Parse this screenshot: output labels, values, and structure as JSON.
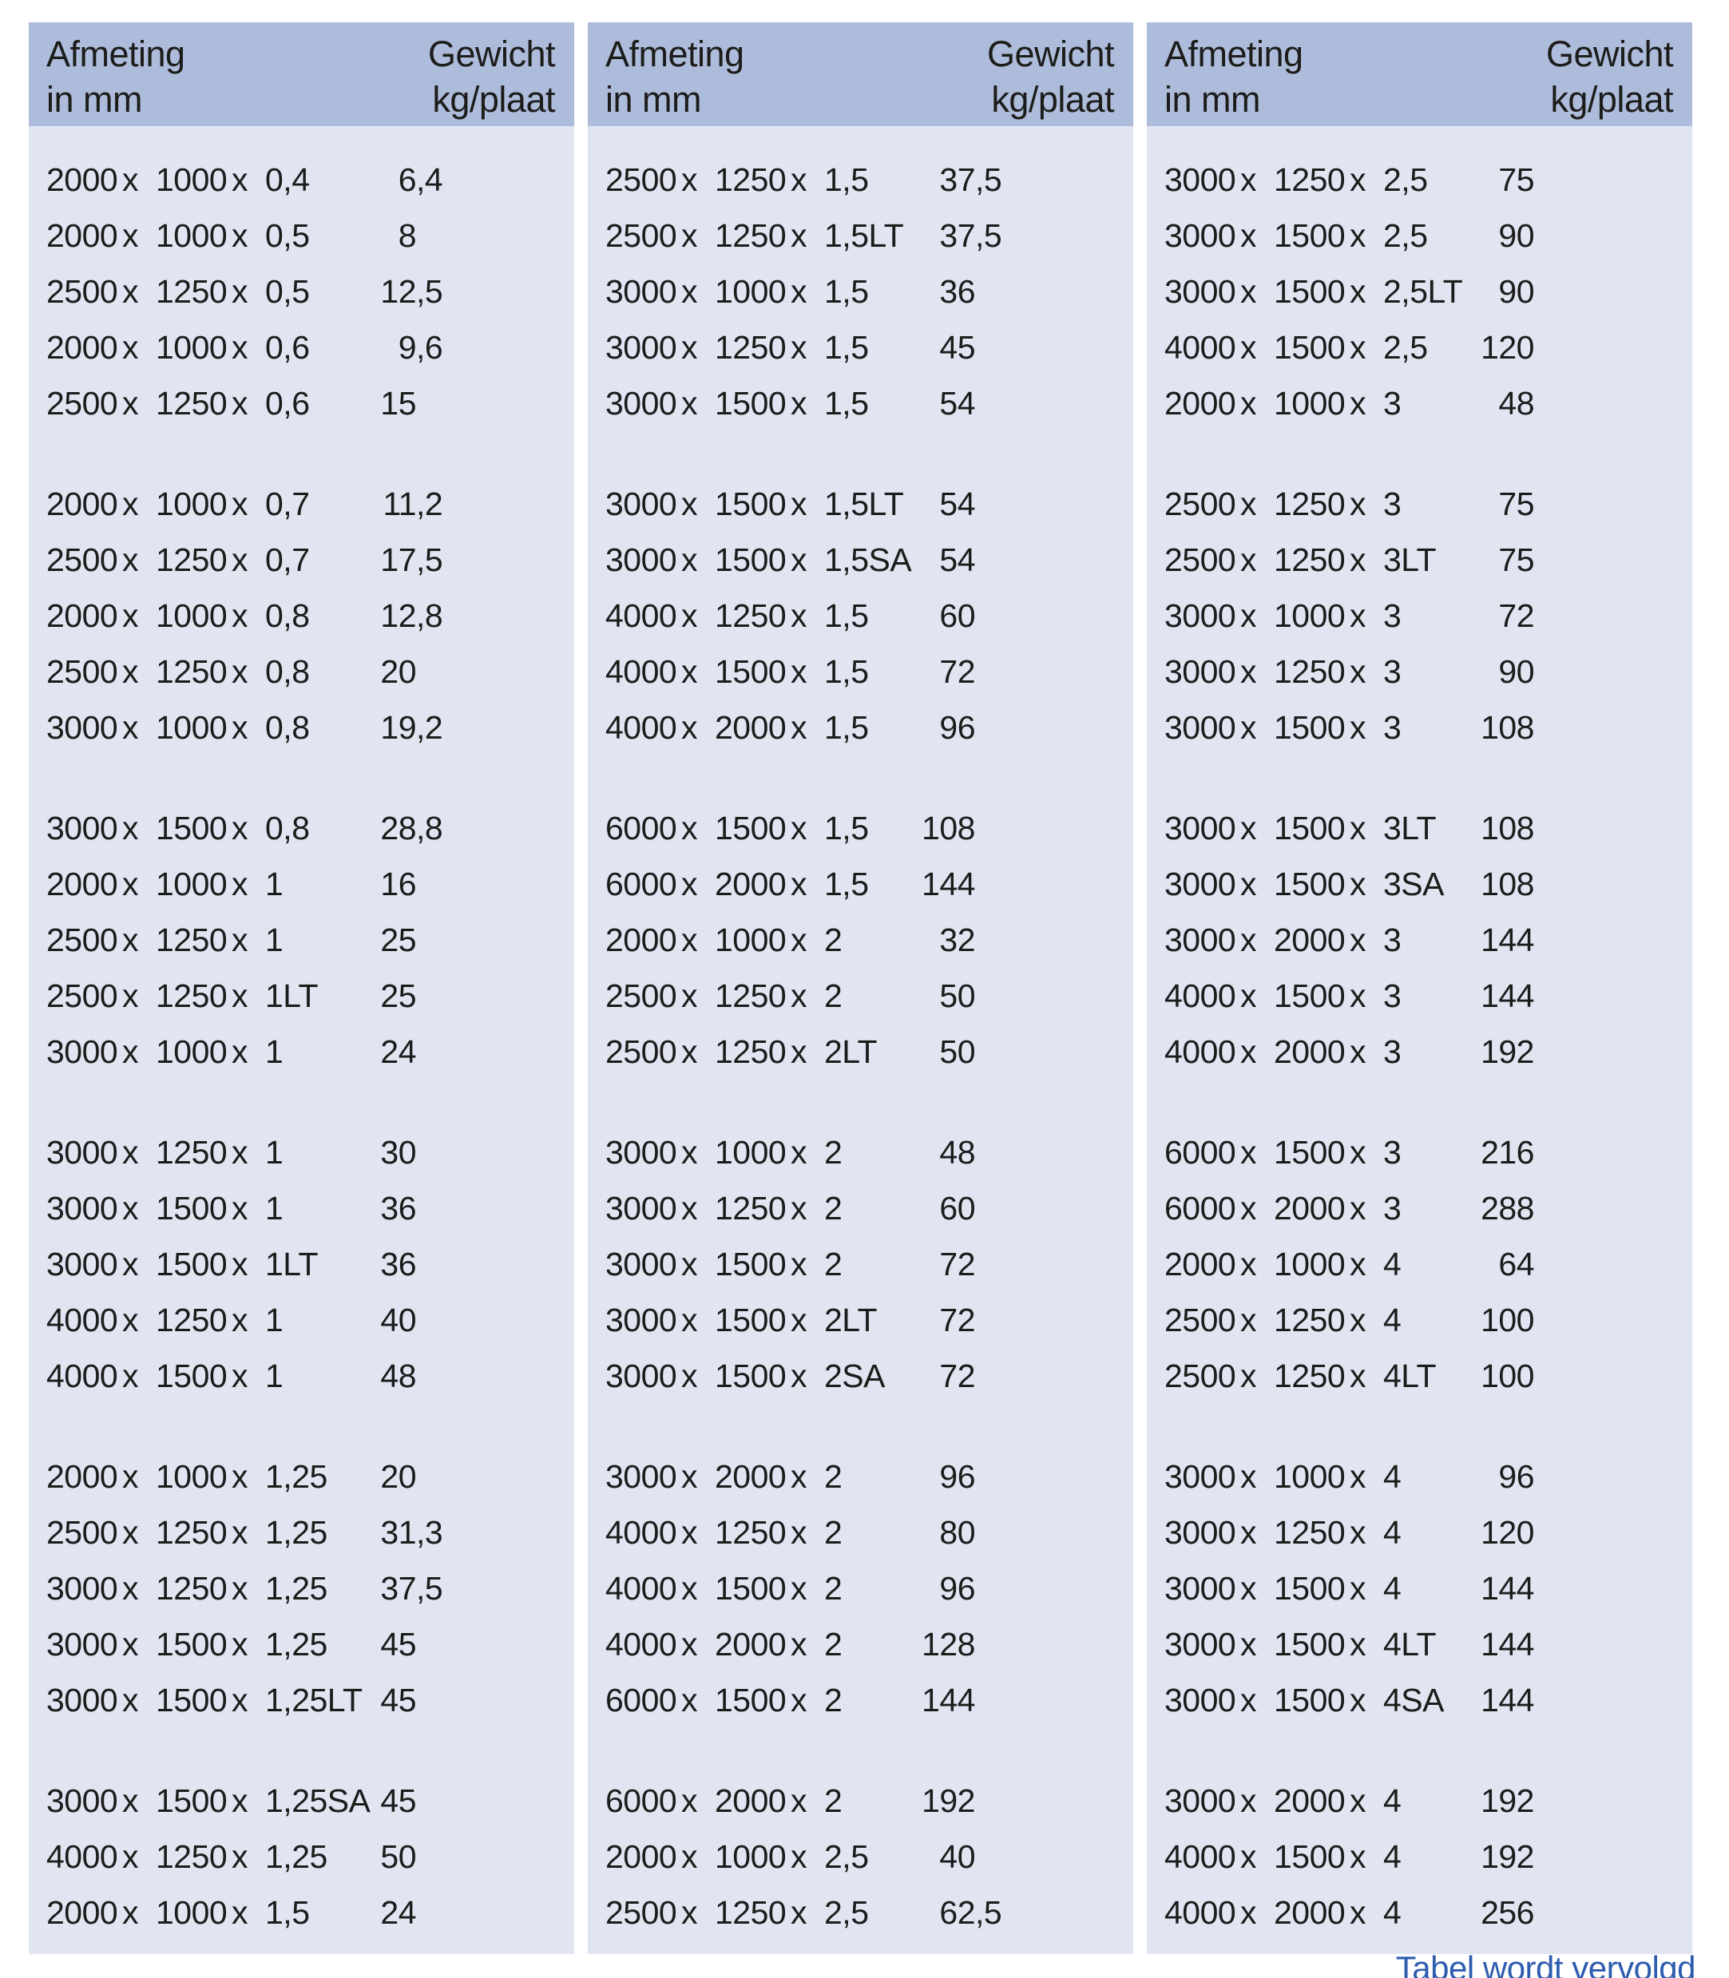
{
  "colors": {
    "page_bg": "#ffffff",
    "header_bg": "#aebcdb",
    "body_bg": "#e1e5f2",
    "text": "#1c1c1a",
    "footer_text": "#2e5cae"
  },
  "table": {
    "header": {
      "left_line1": "Afmeting",
      "left_line2": "in mm",
      "right_line1": "Gewicht",
      "right_line2": "kg/plaat"
    },
    "separator": "x",
    "columns": [
      {
        "groups": [
          [
            [
              "2000",
              "1000",
              "0,4",
              "6,4"
            ],
            [
              "2000",
              "1000",
              "0,5",
              "8"
            ],
            [
              "2500",
              "1250",
              "0,5",
              "12,5"
            ],
            [
              "2000",
              "1000",
              "0,6",
              "9,6"
            ],
            [
              "2500",
              "1250",
              "0,6",
              "15"
            ]
          ],
          [
            [
              "2000",
              "1000",
              "0,7",
              "11,2"
            ],
            [
              "2500",
              "1250",
              "0,7",
              "17,5"
            ],
            [
              "2000",
              "1000",
              "0,8",
              "12,8"
            ],
            [
              "2500",
              "1250",
              "0,8",
              "20"
            ],
            [
              "3000",
              "1000",
              "0,8",
              "19,2"
            ]
          ],
          [
            [
              "3000",
              "1500",
              "0,8",
              "28,8"
            ],
            [
              "2000",
              "1000",
              "1",
              "16"
            ],
            [
              "2500",
              "1250",
              "1",
              "25"
            ],
            [
              "2500",
              "1250",
              "1LT",
              "25"
            ],
            [
              "3000",
              "1000",
              "1",
              "24"
            ]
          ],
          [
            [
              "3000",
              "1250",
              "1",
              "30"
            ],
            [
              "3000",
              "1500",
              "1",
              "36"
            ],
            [
              "3000",
              "1500",
              "1LT",
              "36"
            ],
            [
              "4000",
              "1250",
              "1",
              "40"
            ],
            [
              "4000",
              "1500",
              "1",
              "48"
            ]
          ],
          [
            [
              "2000",
              "1000",
              "1,25",
              "20"
            ],
            [
              "2500",
              "1250",
              "1,25",
              "31,3"
            ],
            [
              "3000",
              "1250",
              "1,25",
              "37,5"
            ],
            [
              "3000",
              "1500",
              "1,25",
              "45"
            ],
            [
              "3000",
              "1500",
              "1,25LT",
              "45"
            ]
          ],
          [
            [
              "3000",
              "1500",
              "1,25SA",
              "45"
            ],
            [
              "4000",
              "1250",
              "1,25",
              "50"
            ],
            [
              "2000",
              "1000",
              "1,5",
              "24"
            ]
          ]
        ]
      },
      {
        "groups": [
          [
            [
              "2500",
              "1250",
              "1,5",
              "37,5"
            ],
            [
              "2500",
              "1250",
              "1,5LT",
              "37,5"
            ],
            [
              "3000",
              "1000",
              "1,5",
              "36"
            ],
            [
              "3000",
              "1250",
              "1,5",
              "45"
            ],
            [
              "3000",
              "1500",
              "1,5",
              "54"
            ]
          ],
          [
            [
              "3000",
              "1500",
              "1,5LT",
              "54"
            ],
            [
              "3000",
              "1500",
              "1,5SA",
              "54"
            ],
            [
              "4000",
              "1250",
              "1,5",
              "60"
            ],
            [
              "4000",
              "1500",
              "1,5",
              "72"
            ],
            [
              "4000",
              "2000",
              "1,5",
              "96"
            ]
          ],
          [
            [
              "6000",
              "1500",
              "1,5",
              "108"
            ],
            [
              "6000",
              "2000",
              "1,5",
              "144"
            ],
            [
              "2000",
              "1000",
              "2",
              "32"
            ],
            [
              "2500",
              "1250",
              "2",
              "50"
            ],
            [
              "2500",
              "1250",
              "2LT",
              "50"
            ]
          ],
          [
            [
              "3000",
              "1000",
              "2",
              "48"
            ],
            [
              "3000",
              "1250",
              "2",
              "60"
            ],
            [
              "3000",
              "1500",
              "2",
              "72"
            ],
            [
              "3000",
              "1500",
              "2LT",
              "72"
            ],
            [
              "3000",
              "1500",
              "2SA",
              "72"
            ]
          ],
          [
            [
              "3000",
              "2000",
              "2",
              "96"
            ],
            [
              "4000",
              "1250",
              "2",
              "80"
            ],
            [
              "4000",
              "1500",
              "2",
              "96"
            ],
            [
              "4000",
              "2000",
              "2",
              "128"
            ],
            [
              "6000",
              "1500",
              "2",
              "144"
            ]
          ],
          [
            [
              "6000",
              "2000",
              "2",
              "192"
            ],
            [
              "2000",
              "1000",
              "2,5",
              "40"
            ],
            [
              "2500",
              "1250",
              "2,5",
              "62,5"
            ]
          ]
        ]
      },
      {
        "groups": [
          [
            [
              "3000",
              "1250",
              "2,5",
              "75"
            ],
            [
              "3000",
              "1500",
              "2,5",
              "90"
            ],
            [
              "3000",
              "1500",
              "2,5LT",
              "90"
            ],
            [
              "4000",
              "1500",
              "2,5",
              "120"
            ],
            [
              "2000",
              "1000",
              "3",
              "48"
            ]
          ],
          [
            [
              "2500",
              "1250",
              "3",
              "75"
            ],
            [
              "2500",
              "1250",
              "3LT",
              "75"
            ],
            [
              "3000",
              "1000",
              "3",
              "72"
            ],
            [
              "3000",
              "1250",
              "3",
              "90"
            ],
            [
              "3000",
              "1500",
              "3",
              "108"
            ]
          ],
          [
            [
              "3000",
              "1500",
              "3LT",
              "108"
            ],
            [
              "3000",
              "1500",
              "3SA",
              "108"
            ],
            [
              "3000",
              "2000",
              "3",
              "144"
            ],
            [
              "4000",
              "1500",
              "3",
              "144"
            ],
            [
              "4000",
              "2000",
              "3",
              "192"
            ]
          ],
          [
            [
              "6000",
              "1500",
              "3",
              "216"
            ],
            [
              "6000",
              "2000",
              "3",
              "288"
            ],
            [
              "2000",
              "1000",
              "4",
              "64"
            ],
            [
              "2500",
              "1250",
              "4",
              "100"
            ],
            [
              "2500",
              "1250",
              "4LT",
              "100"
            ]
          ],
          [
            [
              "3000",
              "1000",
              "4",
              "96"
            ],
            [
              "3000",
              "1250",
              "4",
              "120"
            ],
            [
              "3000",
              "1500",
              "4",
              "144"
            ],
            [
              "3000",
              "1500",
              "4LT",
              "144"
            ],
            [
              "3000",
              "1500",
              "4SA",
              "144"
            ]
          ],
          [
            [
              "3000",
              "2000",
              "4",
              "192"
            ],
            [
              "4000",
              "1500",
              "4",
              "192"
            ],
            [
              "4000",
              "2000",
              "4",
              "256"
            ]
          ]
        ]
      }
    ]
  },
  "footer": {
    "note": "Tabel wordt vervolgd"
  }
}
